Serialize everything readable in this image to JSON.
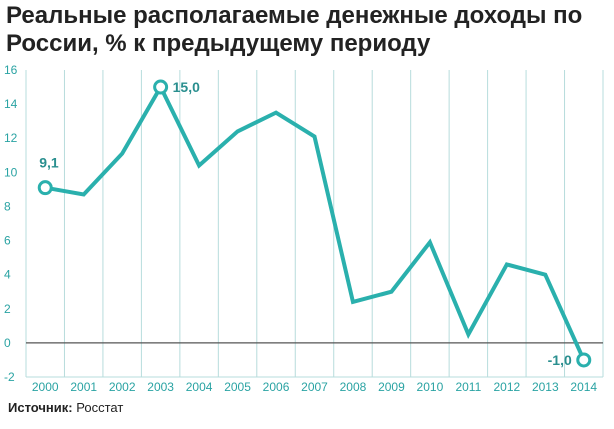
{
  "chart_data": {
    "type": "line",
    "title": "Реальные располагаемые денежные доходы по России, % к предыдущему периоду",
    "x": [
      "2000",
      "2001",
      "2002",
      "2003",
      "2004",
      "2005",
      "2006",
      "2007",
      "2008",
      "2009",
      "2010",
      "2011",
      "2012",
      "2013",
      "2014"
    ],
    "series": [
      {
        "values": [
          9.1,
          8.7,
          11.1,
          15.0,
          10.4,
          12.4,
          13.5,
          12.1,
          2.4,
          3.0,
          5.9,
          0.5,
          4.6,
          4.0,
          -1.0
        ]
      }
    ],
    "yticks": [
      "-2",
      "0",
      "2",
      "4",
      "6",
      "8",
      "10",
      "12",
      "14",
      "16"
    ],
    "ylim": [
      -2,
      16
    ],
    "grid": "vertical",
    "annotations": [
      {
        "index": 0,
        "label": "9,1"
      },
      {
        "index": 3,
        "label": "15,0"
      },
      {
        "index": 14,
        "label": "-1,0"
      }
    ],
    "colors": {
      "line": "#2ab0ad",
      "grid": "#b7dcdc",
      "axis": "#555555",
      "tick_label": "#2aa3a3",
      "annotation": "#2a8f8f"
    }
  },
  "source": {
    "label": "Источник:",
    "value": "Росстат"
  }
}
